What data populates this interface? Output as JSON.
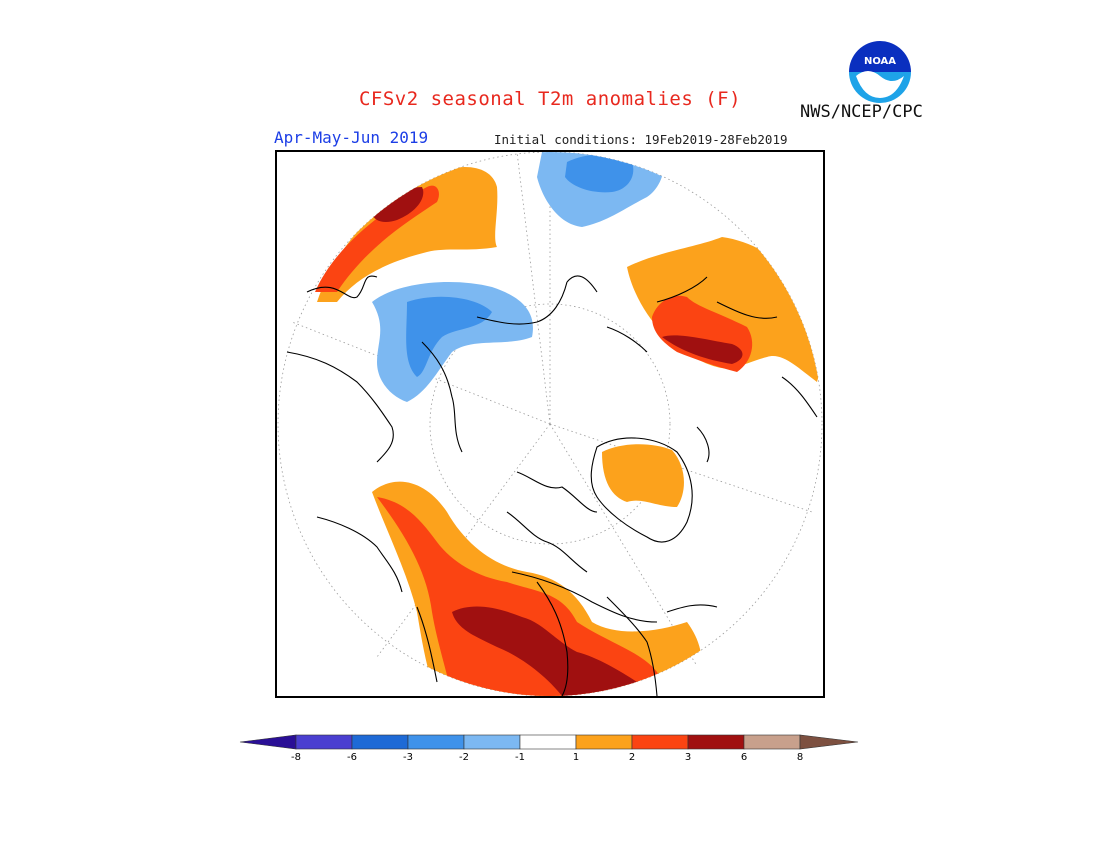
{
  "title": "CFSv2 seasonal T2m anomalies (F)",
  "period": "Apr-May-Jun 2019",
  "initial_conditions": "Initial conditions: 19Feb2019-28Feb2019",
  "agency": "NWS/NCEP/CPC",
  "logo": {
    "text": "NOAA",
    "icon": "noaa-logo-icon"
  },
  "colorbar": {
    "colors": [
      "#2a0f96",
      "#4a3fd0",
      "#1e6ad6",
      "#3f92ea",
      "#7cb8f2",
      "#ffffff",
      "#fca21c",
      "#fb4412",
      "#a01010",
      "#c8a08c",
      "#7d5040"
    ],
    "tick_labels": [
      "-8",
      "-6",
      "-3",
      "-2",
      "-1",
      "1",
      "2",
      "3",
      "6",
      "8"
    ]
  },
  "map": {
    "projection": "north-polar-stereographic",
    "coastline_color": "#000000",
    "graticule_color": "#888888"
  }
}
